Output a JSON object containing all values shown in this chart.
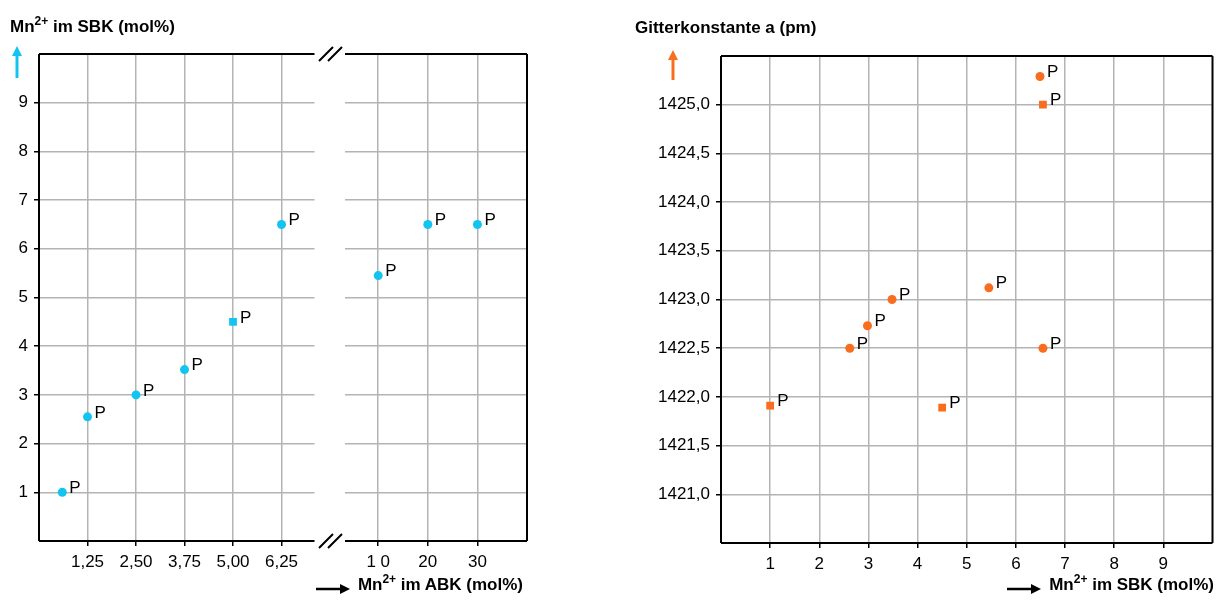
{
  "chart_data": [
    {
      "type": "scatter",
      "ylabel": "Mn$^{2+}$ im SBK (mol%)",
      "xlim": [
        0,
        7.1
      ],
      "xticks": [
        {
          "value": 1.25,
          "label": "1,25"
        },
        {
          "value": 2.5,
          "label": "2,50"
        },
        {
          "value": 3.75,
          "label": "3,75"
        },
        {
          "value": 5,
          "label": "5,00"
        },
        {
          "value": 6.25,
          "label": "6,25"
        }
      ],
      "ylim": [
        0,
        10
      ],
      "yticks": [
        1,
        2,
        3,
        4,
        5,
        6,
        7,
        8,
        9
      ],
      "grid": true,
      "legend": false,
      "series": [
        {
          "color": "#14c4f0",
          "marker": "circle",
          "x": [
            0.6,
            1.25,
            2.5,
            3.75,
            6.25
          ],
          "values": [
            1.0,
            2.55,
            3.0,
            3.52,
            6.5
          ]
        },
        {
          "color": "#14c4f0",
          "marker": "square",
          "x": [
            5.0
          ],
          "values": [
            4.5
          ]
        }
      ],
      "annotations": [
        {
          "text": "P",
          "x": 0.6,
          "y": 1.0
        },
        {
          "text": "P",
          "x": 1.25,
          "y": 2.55
        },
        {
          "text": "P",
          "x": 2.5,
          "y": 3.0
        },
        {
          "text": "P",
          "x": 3.75,
          "y": 3.52
        },
        {
          "text": "P",
          "x": 5.0,
          "y": 4.5
        },
        {
          "text": "P",
          "x": 6.25,
          "y": 6.5
        }
      ]
    },
    {
      "type": "scatter",
      "xlabel": "Mn$^{2+}$ im ABK (mol%)",
      "xlim": [
        3.3,
        40
      ],
      "xticks": [
        {
          "value": 10,
          "label": "1 0"
        },
        20,
        30
      ],
      "ylim": [
        0,
        10
      ],
      "yticks": [
        1,
        2,
        3,
        4,
        5,
        6,
        7,
        8,
        9
      ],
      "tick_labels": "x",
      "grid": true,
      "legend": false,
      "series": [
        {
          "color": "#14c4f0",
          "marker": "circle",
          "x": [
            10,
            20,
            30
          ],
          "values": [
            5.45,
            6.5,
            6.5
          ]
        }
      ],
      "annotations": [
        {
          "text": "P",
          "x": 10,
          "y": 5.45
        },
        {
          "text": "P",
          "x": 20,
          "y": 6.5
        },
        {
          "text": "P",
          "x": 30,
          "y": 6.5
        }
      ]
    },
    {
      "type": "scatter",
      "ylabel": "Gitterkonstante a (pm)",
      "xlabel": "Mn$^{2+}$ im SBK (mol%)",
      "xlim": [
        0,
        10
      ],
      "xticks": [
        1,
        2,
        3,
        4,
        5,
        6,
        7,
        8,
        9
      ],
      "ylim": [
        1420.5,
        1425.5
      ],
      "yticks": [
        {
          "value": 1421,
          "label": "1421,0"
        },
        {
          "value": 1421.5,
          "label": "1421,5"
        },
        {
          "value": 1422,
          "label": "1422,0"
        },
        {
          "value": 1422.5,
          "label": "1422,5"
        },
        {
          "value": 1423,
          "label": "1423,0"
        },
        {
          "value": 1423.5,
          "label": "1423,5"
        },
        {
          "value": 1424,
          "label": "1424,0"
        },
        {
          "value": 1424.5,
          "label": "1424,5"
        },
        {
          "value": 1425,
          "label": "1425,0"
        }
      ],
      "grid": true,
      "legend": false,
      "series": [
        {
          "color": "#f96d1e",
          "marker": "circle",
          "x": [
            2.62,
            2.98,
            3.48,
            5.45,
            6.49,
            6.55
          ],
          "values": [
            1422.5,
            1422.73,
            1423.0,
            1423.12,
            1425.29,
            1422.5
          ]
        },
        {
          "color": "#f96d1e",
          "marker": "square",
          "x": [
            1.0,
            4.5,
            6.55
          ],
          "values": [
            1421.91,
            1421.89,
            1425.0
          ]
        }
      ],
      "annotations": [
        {
          "text": "P",
          "x": 2.62,
          "y": 1422.5
        },
        {
          "text": "P",
          "x": 2.98,
          "y": 1422.73
        },
        {
          "text": "P",
          "x": 3.48,
          "y": 1423.0
        },
        {
          "text": "P",
          "x": 5.45,
          "y": 1423.12
        },
        {
          "text": "P",
          "x": 6.49,
          "y": 1425.29
        },
        {
          "text": "P",
          "x": 6.55,
          "y": 1422.5
        },
        {
          "text": "P",
          "x": 1.0,
          "y": 1421.91
        },
        {
          "text": "P",
          "x": 4.5,
          "y": 1421.89
        },
        {
          "text": "P",
          "x": 6.55,
          "y": 1425.0
        }
      ]
    }
  ]
}
